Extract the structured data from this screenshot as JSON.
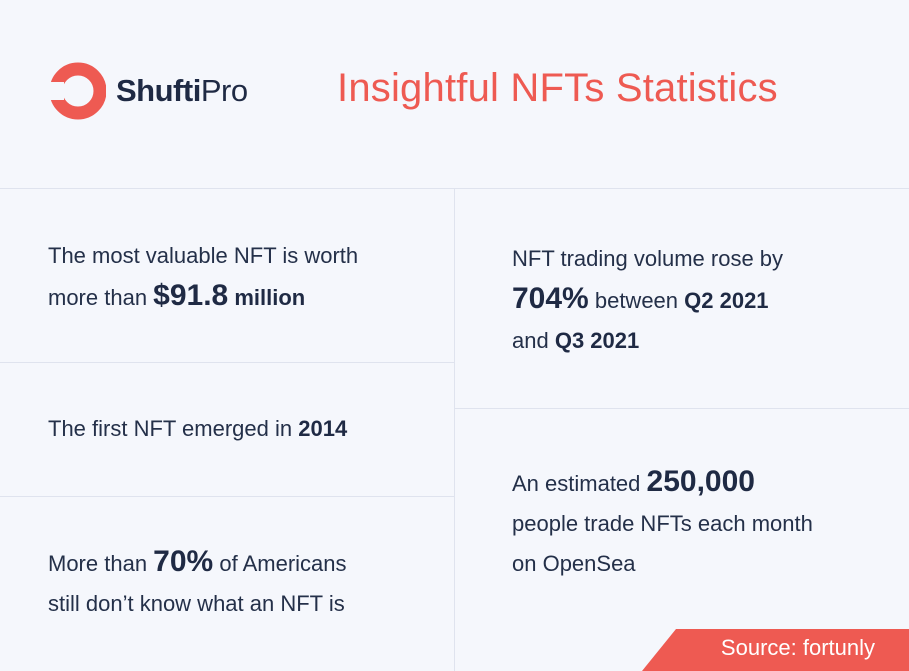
{
  "brand": {
    "name_bold": "Shufti",
    "name_light": "Pro"
  },
  "title": "Insightful NFTs Statistics",
  "colors": {
    "accent": "#ee5a52",
    "text": "#1f2a44",
    "background": "#f5f7fc",
    "divider": "#dfe3ee"
  },
  "stats": {
    "valuable": {
      "line1": "The most valuable NFT is worth",
      "line2_pre": "more than ",
      "amount": "$91.8",
      "unit": " million"
    },
    "first": {
      "pre": "The first NFT emerged in ",
      "year": "2014"
    },
    "americans": {
      "pre": "More than ",
      "percent": "70%",
      "post": " of Americans",
      "line2": "still don’t know what an NFT is"
    },
    "volume": {
      "line1": "NFT trading volume rose by",
      "percent": "704%",
      "mid": " between ",
      "q_from": "Q2 2021",
      "line3_pre": "and ",
      "q_to": "Q3 2021"
    },
    "traders": {
      "pre": "An estimated ",
      "count": "250,000",
      "line2": "people trade NFTs each month",
      "line3": "on OpenSea"
    }
  },
  "source": "Source: fortunly"
}
